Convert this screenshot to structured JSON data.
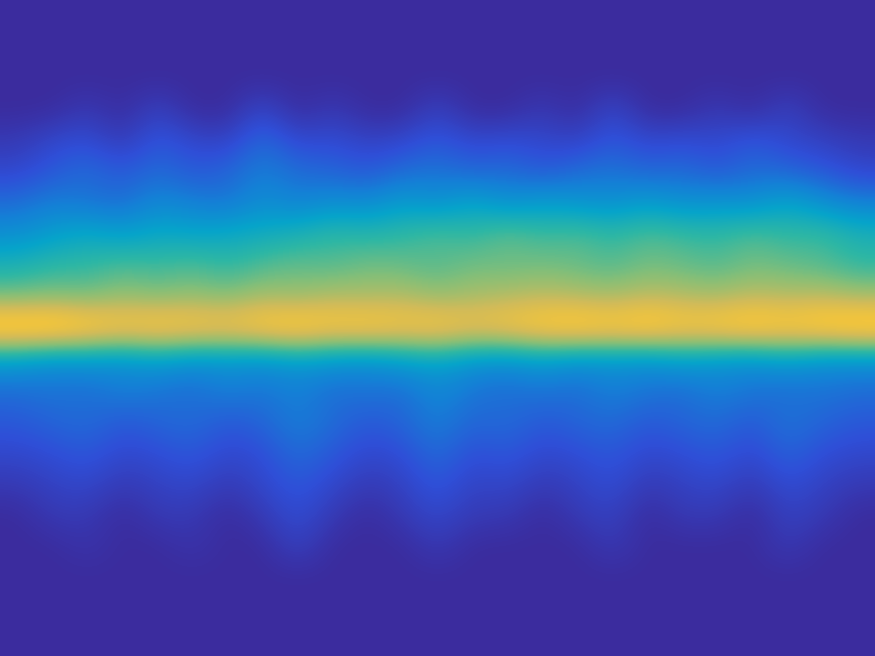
{
  "chart_data": {
    "type": "heatmap",
    "tick_labels": false,
    "clim": [
      0,
      1
    ],
    "cells": [
      [
        0,
        0,
        0,
        0,
        0,
        0,
        0,
        0,
        0,
        0,
        0,
        0,
        0,
        0,
        0,
        0,
        0,
        0,
        0,
        0,
        0,
        0,
        0,
        0,
        0
      ],
      [
        0,
        0,
        0,
        0,
        0,
        0,
        0,
        0,
        0,
        0,
        0,
        0,
        0,
        0,
        0,
        0,
        0,
        0,
        0,
        0,
        0,
        0,
        0,
        0,
        0
      ],
      [
        0,
        0,
        0,
        0,
        0,
        0,
        0,
        0,
        0,
        0,
        0,
        0,
        0,
        0,
        0,
        0,
        0,
        0,
        0,
        0,
        0,
        0,
        0,
        0,
        0
      ],
      [
        0,
        0,
        0.05,
        0,
        0.08,
        0,
        0,
        0.1,
        0,
        0.05,
        0,
        0,
        0.08,
        0,
        0,
        0.05,
        0,
        0.1,
        0,
        0,
        0.05,
        0,
        0.08,
        0,
        0
      ],
      [
        0.05,
        0.1,
        0.12,
        0.05,
        0.15,
        0.1,
        0.08,
        0.2,
        0.1,
        0.12,
        0.08,
        0.1,
        0.15,
        0.1,
        0.12,
        0.1,
        0.08,
        0.15,
        0.1,
        0.12,
        0.1,
        0.15,
        0.1,
        0.08,
        0.05
      ],
      [
        0.1,
        0.15,
        0.2,
        0.15,
        0.2,
        0.15,
        0.18,
        0.25,
        0.2,
        0.18,
        0.15,
        0.2,
        0.22,
        0.18,
        0.2,
        0.15,
        0.2,
        0.22,
        0.18,
        0.2,
        0.15,
        0.2,
        0.18,
        0.15,
        0.1
      ],
      [
        0.2,
        0.25,
        0.22,
        0.2,
        0.28,
        0.25,
        0.22,
        0.3,
        0.25,
        0.3,
        0.28,
        0.35,
        0.3,
        0.38,
        0.3,
        0.35,
        0.32,
        0.3,
        0.35,
        0.3,
        0.32,
        0.3,
        0.38,
        0.3,
        0.25
      ],
      [
        0.3,
        0.35,
        0.4,
        0.35,
        0.4,
        0.38,
        0.4,
        0.42,
        0.45,
        0.5,
        0.48,
        0.5,
        0.55,
        0.5,
        0.58,
        0.52,
        0.55,
        0.5,
        0.55,
        0.52,
        0.5,
        0.55,
        0.5,
        0.52,
        0.45
      ],
      [
        0.45,
        0.5,
        0.5,
        0.55,
        0.52,
        0.55,
        0.5,
        0.55,
        0.58,
        0.55,
        0.6,
        0.58,
        0.55,
        0.6,
        0.58,
        0.6,
        0.58,
        0.55,
        0.6,
        0.58,
        0.55,
        0.6,
        0.58,
        0.55,
        0.5
      ],
      [
        0.6,
        0.62,
        0.6,
        0.65,
        0.62,
        0.65,
        0.62,
        0.68,
        0.65,
        0.7,
        0.68,
        0.7,
        0.65,
        0.68,
        0.7,
        0.72,
        0.7,
        0.68,
        0.72,
        0.7,
        0.68,
        0.72,
        0.7,
        0.72,
        0.68
      ],
      [
        1.0,
        1.0,
        0.95,
        0.9,
        0.92,
        0.9,
        0.88,
        0.92,
        0.95,
        0.9,
        0.92,
        0.88,
        0.9,
        0.85,
        0.88,
        0.92,
        0.95,
        0.92,
        0.95,
        0.9,
        0.92,
        0.95,
        0.92,
        0.95,
        0.98
      ],
      [
        0.35,
        0.3,
        0.32,
        0.3,
        0.35,
        0.3,
        0.32,
        0.3,
        0.35,
        0.32,
        0.3,
        0.35,
        0.38,
        0.32,
        0.3,
        0.35,
        0.3,
        0.32,
        0.3,
        0.35,
        0.32,
        0.3,
        0.35,
        0.3,
        0.3
      ],
      [
        0.2,
        0.22,
        0.2,
        0.25,
        0.22,
        0.2,
        0.25,
        0.22,
        0.25,
        0.2,
        0.22,
        0.2,
        0.28,
        0.22,
        0.2,
        0.22,
        0.2,
        0.25,
        0.22,
        0.2,
        0.25,
        0.22,
        0.2,
        0.22,
        0.2
      ],
      [
        0.15,
        0.18,
        0.2,
        0.15,
        0.18,
        0.2,
        0.15,
        0.18,
        0.25,
        0.2,
        0.15,
        0.18,
        0.25,
        0.18,
        0.2,
        0.15,
        0.18,
        0.2,
        0.15,
        0.18,
        0.2,
        0.15,
        0.22,
        0.18,
        0.15
      ],
      [
        0.1,
        0.12,
        0.15,
        0.1,
        0.12,
        0.15,
        0.1,
        0.12,
        0.2,
        0.15,
        0.1,
        0.12,
        0.2,
        0.12,
        0.15,
        0.1,
        0.12,
        0.15,
        0.1,
        0.12,
        0.15,
        0.1,
        0.18,
        0.12,
        0.1
      ],
      [
        0.05,
        0.08,
        0.1,
        0.05,
        0.08,
        0.1,
        0.05,
        0.1,
        0.15,
        0.1,
        0.05,
        0.08,
        0.15,
        0.08,
        0.1,
        0.05,
        0.08,
        0.12,
        0.05,
        0.08,
        0.1,
        0.05,
        0.12,
        0.08,
        0.05
      ],
      [
        0,
        0.05,
        0.05,
        0,
        0.05,
        0.05,
        0,
        0.05,
        0.12,
        0.05,
        0,
        0.05,
        0.1,
        0.05,
        0.05,
        0,
        0.05,
        0.08,
        0,
        0.05,
        0.05,
        0,
        0.08,
        0.05,
        0
      ],
      [
        0,
        0,
        0.03,
        0,
        0,
        0.03,
        0,
        0,
        0.08,
        0,
        0,
        0,
        0.05,
        0,
        0,
        0,
        0,
        0.05,
        0,
        0,
        0,
        0,
        0.05,
        0,
        0
      ],
      [
        0,
        0,
        0,
        0,
        0,
        0,
        0,
        0,
        0,
        0,
        0,
        0,
        0,
        0,
        0,
        0,
        0,
        0,
        0,
        0,
        0,
        0,
        0,
        0,
        0
      ],
      [
        0,
        0,
        0,
        0,
        0,
        0,
        0,
        0,
        0,
        0,
        0,
        0,
        0,
        0,
        0,
        0,
        0,
        0,
        0,
        0,
        0,
        0,
        0,
        0,
        0
      ],
      [
        0,
        0,
        0,
        0,
        0,
        0,
        0,
        0,
        0,
        0,
        0,
        0,
        0,
        0,
        0,
        0,
        0,
        0,
        0,
        0,
        0,
        0,
        0,
        0,
        0
      ]
    ]
  }
}
